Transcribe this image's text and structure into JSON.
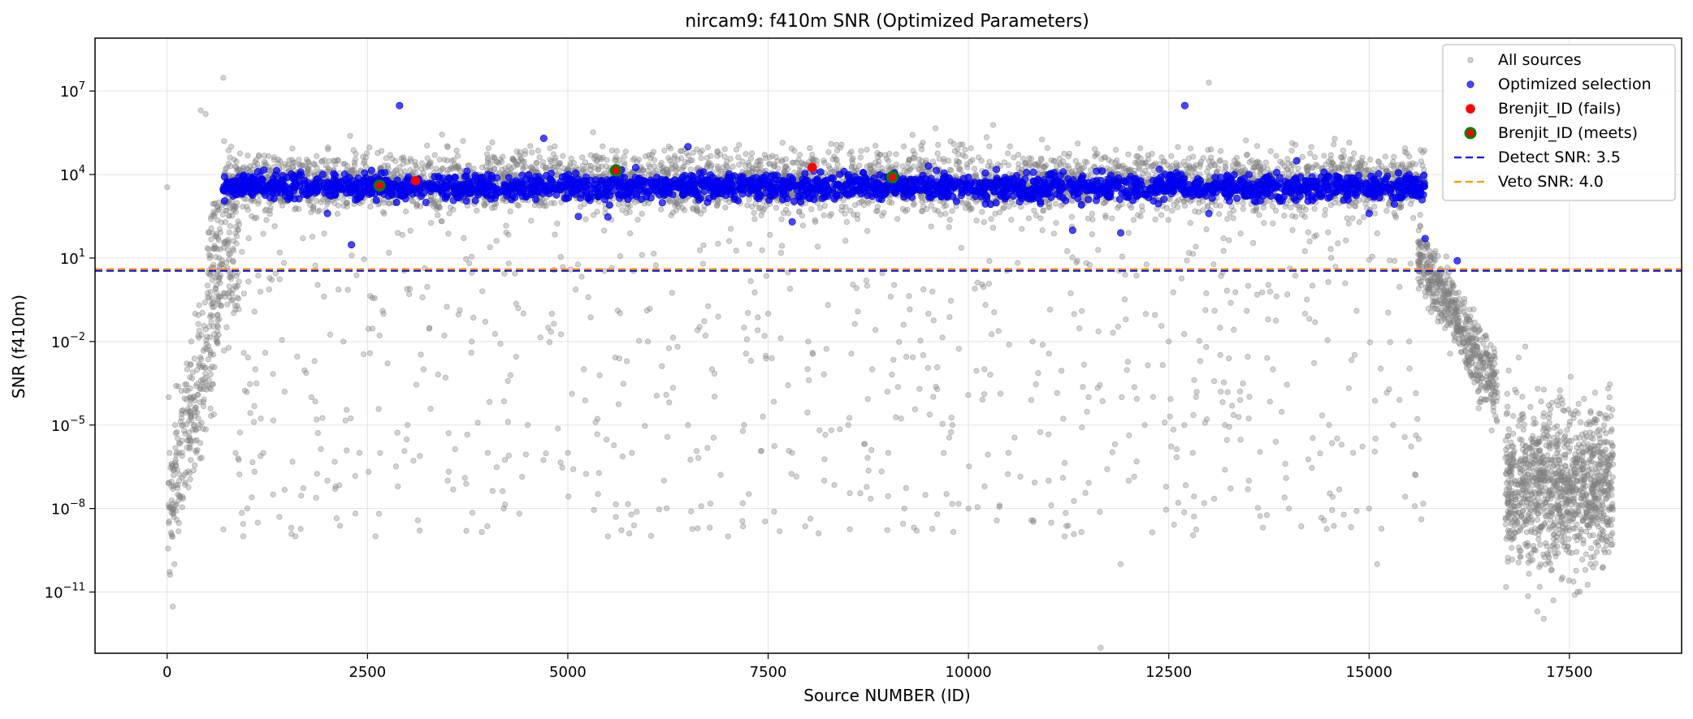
{
  "chart_data": {
    "type": "scatter",
    "title": "nircam9: f410m SNR (Optimized Parameters)",
    "xlabel": "Source NUMBER (ID)",
    "ylabel": "SNR (f410m)",
    "xlim": [
      -900,
      18900
    ],
    "ylim_log10": [
      -13.2,
      8.9
    ],
    "yscale": "log",
    "grid": true,
    "legend_position": "top-right",
    "x_ticks": [
      0,
      2500,
      5000,
      7500,
      10000,
      12500,
      15000,
      17500
    ],
    "x_tick_labels": [
      "0",
      "2500",
      "5000",
      "7500",
      "10000",
      "12500",
      "15000",
      "17500"
    ],
    "y_ticks_log10": [
      7,
      4,
      1,
      -2,
      -5,
      -8,
      -11
    ],
    "y_tick_labels": [
      {
        "base": "10",
        "exp": "7"
      },
      {
        "base": "10",
        "exp": "4"
      },
      {
        "base": "10",
        "exp": "1"
      },
      {
        "base": "10",
        "exp": "−2"
      },
      {
        "base": "10",
        "exp": "−5"
      },
      {
        "base": "10",
        "exp": "−8"
      },
      {
        "base": "10",
        "exp": "−11"
      }
    ],
    "colors": {
      "all_sources": "#808080",
      "optimized": "#0000ff",
      "fails": "#ff0000",
      "meets_fill": "#ff0000",
      "meets_edge": "#008000",
      "detect_line": "#0000ff",
      "veto_line": "#ff9900"
    },
    "series": [
      {
        "name": "All sources",
        "marker": "circle-small",
        "color": "#808080",
        "note_points": "representative sample of ~18000 sources",
        "points": [
          [
            0,
            3500
          ],
          [
            20,
            0.0001
          ],
          [
            30,
            1e-06
          ],
          [
            50,
            1e-08
          ],
          [
            60,
            1e-09
          ],
          [
            90,
            1e-10
          ],
          [
            70,
            3e-12
          ],
          [
            100,
            1e-05
          ],
          [
            150,
            1e-06
          ],
          [
            200,
            1e-05
          ],
          [
            250,
            0.001
          ],
          [
            300,
            0.01
          ],
          [
            350,
            0.1
          ],
          [
            400,
            0.2
          ],
          [
            420,
            2000000
          ],
          [
            480,
            1500000
          ],
          [
            550,
            0.05
          ],
          [
            600,
            2
          ],
          [
            650,
            10
          ],
          [
            700,
            30000000
          ],
          [
            750,
            1000
          ],
          [
            800,
            100000
          ],
          [
            950,
            1e-09
          ],
          [
            1000,
            1e-08
          ],
          [
            1100,
            0.001
          ],
          [
            1200,
            1e-06
          ],
          [
            1400,
            5e-09
          ],
          [
            1600,
            1e-09
          ],
          [
            1800,
            0.0001
          ],
          [
            2000,
            1e-07
          ],
          [
            2200,
            0.01
          ],
          [
            2400,
            1e-06
          ],
          [
            2600,
            1e-09
          ],
          [
            2700,
            0.1
          ],
          [
            3000,
            1e-05
          ],
          [
            3200,
            0.001
          ],
          [
            3500,
            1e-07
          ],
          [
            3800,
            0.01
          ],
          [
            4000,
            1e-06
          ],
          [
            4200,
            1e-08
          ],
          [
            4500,
            1e-05
          ],
          [
            4800,
            0.1
          ],
          [
            5000,
            1e-06
          ],
          [
            5200,
            0.001
          ],
          [
            5500,
            1e-09
          ],
          [
            5800,
            1e-06
          ],
          [
            6000,
            0.01
          ],
          [
            6200,
            1e-07
          ],
          [
            6500,
            1e-05
          ],
          [
            6800,
            0.001
          ],
          [
            7000,
            1e-09
          ],
          [
            7200,
            1e-05
          ],
          [
            7500,
            0.1
          ],
          [
            7800,
            1e-06
          ],
          [
            8000,
            0.01
          ],
          [
            8200,
            1e-07
          ],
          [
            8500,
            1e-05
          ],
          [
            8800,
            0.001
          ],
          [
            9000,
            1e-06
          ],
          [
            9200,
            1e-08
          ],
          [
            9500,
            0.1
          ],
          [
            9800,
            1e-05
          ],
          [
            10000,
            1e-08
          ],
          [
            10200,
            0.001
          ],
          [
            10500,
            1e-06
          ],
          [
            10800,
            0.01
          ],
          [
            11000,
            1e-07
          ],
          [
            11200,
            1e-09
          ],
          [
            11500,
            0.0001
          ],
          [
            11650,
            1e-13
          ],
          [
            11900,
            1e-10
          ],
          [
            12000,
            1e-07
          ],
          [
            12200,
            1e-05
          ],
          [
            12500,
            0.01
          ],
          [
            12800,
            1e-06
          ],
          [
            13000,
            20000000
          ],
          [
            13200,
            1e-05
          ],
          [
            13500,
            1e-07
          ],
          [
            13800,
            0.001
          ],
          [
            14000,
            1e-08
          ],
          [
            14200,
            0.1
          ],
          [
            14500,
            1e-05
          ],
          [
            14800,
            1e-06
          ],
          [
            15000,
            1e-08
          ],
          [
            15100,
            1e-10
          ],
          [
            15300,
            1e-05
          ],
          [
            15500,
            0.01
          ],
          [
            15800,
            3
          ],
          [
            16000,
            0.5
          ],
          [
            16200,
            0.05
          ],
          [
            16400,
            0.003
          ],
          [
            16600,
            0.0001
          ],
          [
            16800,
            1e-06
          ],
          [
            17000,
            1e-08
          ],
          [
            17200,
            1e-10
          ],
          [
            17400,
            1e-09
          ],
          [
            17500,
            1e-07
          ],
          [
            17700,
            1e-08
          ],
          [
            17900,
            1e-06
          ],
          [
            18000,
            0.0001
          ],
          [
            17100,
            2e-12
          ],
          [
            17300,
            5e-12
          ],
          [
            17600,
            1e-11
          ]
        ]
      },
      {
        "name": "Optimized selection",
        "marker": "circle",
        "color": "#0000ff",
        "note_points": "band of sources with SNR ~1e3–1e5 between ID ~700 and ~15700",
        "points": [
          [
            700,
            3000
          ],
          [
            1000,
            5000
          ],
          [
            1500,
            8000
          ],
          [
            2000,
            400
          ],
          [
            2300,
            30
          ],
          [
            2600,
            8000
          ],
          [
            2900,
            3000000
          ],
          [
            3500,
            2000
          ],
          [
            4000,
            10000
          ],
          [
            4700,
            200000
          ],
          [
            5000,
            5000
          ],
          [
            5500,
            300
          ],
          [
            6000,
            5000
          ],
          [
            6500,
            100000
          ],
          [
            7000,
            8000
          ],
          [
            7800,
            200
          ],
          [
            8500,
            10000
          ],
          [
            9000,
            5000
          ],
          [
            9500,
            20000
          ],
          [
            10000,
            8000
          ],
          [
            10500,
            5000
          ],
          [
            11000,
            10000
          ],
          [
            11300,
            100
          ],
          [
            11900,
            80
          ],
          [
            12500,
            5000
          ],
          [
            12700,
            3000000
          ],
          [
            13000,
            400
          ],
          [
            13500,
            10000
          ],
          [
            14000,
            5000
          ],
          [
            14500,
            8000
          ],
          [
            15000,
            400
          ],
          [
            15500,
            10000
          ],
          [
            15700,
            50
          ],
          [
            16100,
            8
          ]
        ]
      },
      {
        "name": "Brenjit_ID (fails)",
        "marker": "circle",
        "color": "#ff0000",
        "points": [
          [
            3100,
            6000
          ],
          [
            8050,
            18000
          ]
        ]
      },
      {
        "name": "Brenjit_ID (meets)",
        "marker": "circle-edge",
        "color": "#ff0000",
        "edgecolor": "#008000",
        "points": [
          [
            2650,
            4000
          ],
          [
            5600,
            14000
          ],
          [
            9050,
            8000
          ]
        ]
      }
    ],
    "hlines": [
      {
        "name": "Detect SNR: 3.5",
        "y": 3.5,
        "color": "#0000ff",
        "style": "dashed"
      },
      {
        "name": "Veto SNR: 4.0",
        "y": 4.0,
        "color": "#ff9900",
        "style": "dashed"
      }
    ]
  }
}
